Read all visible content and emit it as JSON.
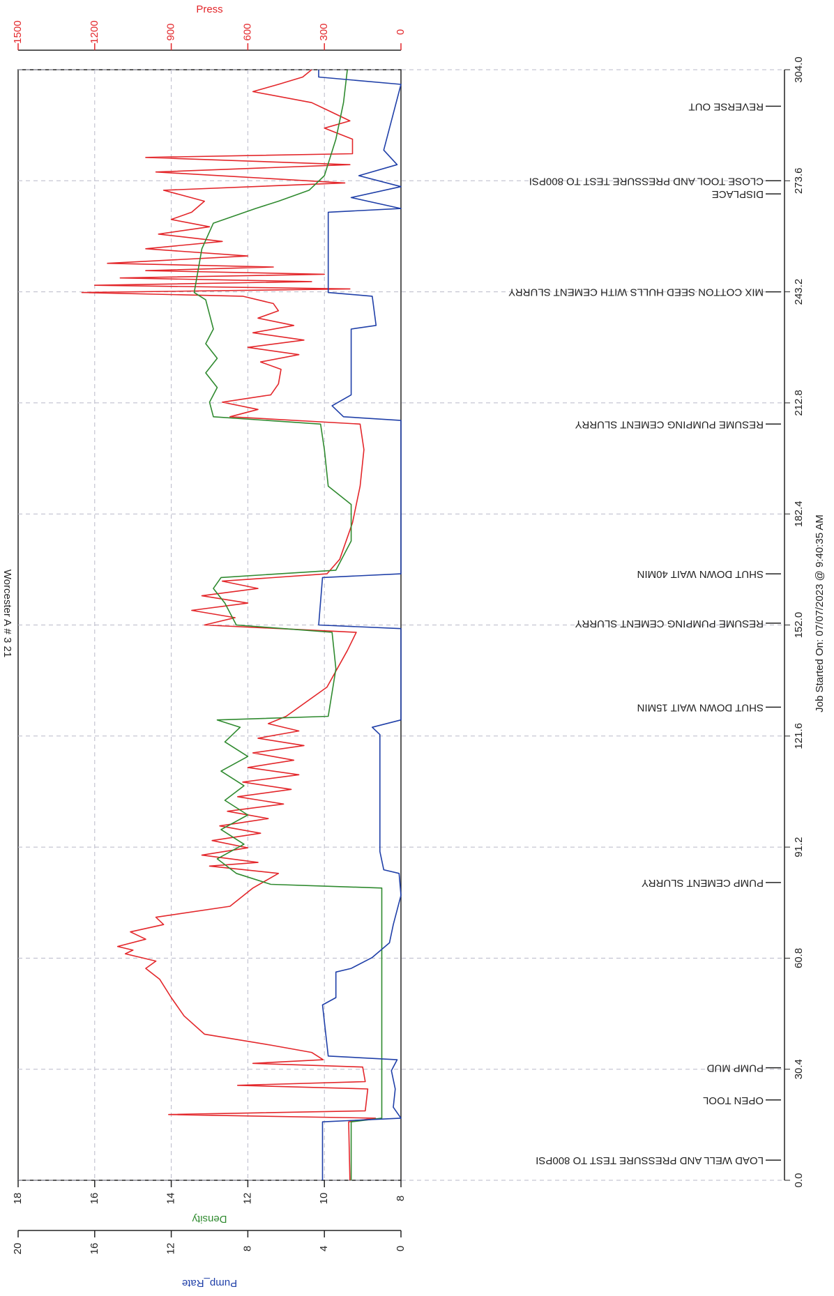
{
  "chart_data": {
    "type": "line",
    "title": "Worcester A # 3 21",
    "footer": "Job Started On: 07/07/2023 @ 9:40:35 AM",
    "xlim": [
      0,
      304
    ],
    "xticks": [
      {
        "value": 0,
        "label": "0.0"
      },
      30.4,
      60.8,
      91.2,
      121.6,
      {
        "value": 152,
        "label": "152.0"
      },
      182.4,
      212.8,
      243.2,
      273.6,
      {
        "value": 304,
        "label": "304.0"
      }
    ],
    "grid": true,
    "series": [
      {
        "name": "Press",
        "color": "#e3262a",
        "ylim": [
          0,
          1500
        ],
        "yticks": [
          0,
          300,
          600,
          900,
          1200,
          1500
        ],
        "x": [
          0,
          16,
          17,
          18,
          19,
          25,
          26,
          27,
          31,
          32,
          33,
          35,
          37,
          40,
          45,
          50,
          55,
          58,
          60,
          62,
          63,
          64,
          66,
          68,
          70,
          72,
          75,
          80,
          84,
          86,
          87,
          89,
          91,
          93,
          95,
          97,
          99,
          101,
          103,
          105,
          107,
          109,
          111,
          113,
          115,
          117,
          119,
          121,
          123,
          125,
          127,
          135,
          145,
          150,
          152,
          154,
          156,
          158,
          160,
          162,
          164,
          166,
          170,
          180,
          190,
          200,
          207,
          209,
          211,
          213,
          215,
          218,
          222,
          224,
          226,
          228,
          230,
          232,
          234,
          236,
          238,
          240,
          242,
          243,
          244,
          245,
          246,
          247,
          248,
          249,
          250,
          251,
          253,
          255,
          257,
          259,
          261,
          263,
          265,
          268,
          271,
          273,
          276,
          278,
          280,
          281,
          285,
          288,
          290,
          293,
          295,
          298,
          300,
          302,
          304
        ],
        "values": [
          200,
          205,
          100,
          910,
          140,
          130,
          640,
          140,
          150,
          580,
          305,
          350,
          510,
          770,
          850,
          900,
          945,
          1000,
          960,
          1080,
          1050,
          1110,
          1000,
          1060,
          930,
          960,
          670,
          580,
          480,
          750,
          560,
          780,
          600,
          740,
          550,
          710,
          520,
          680,
          460,
          640,
          430,
          620,
          400,
          600,
          420,
          580,
          380,
          560,
          400,
          520,
          450,
          290,
          210,
          175,
          770,
          650,
          820,
          600,
          780,
          560,
          700,
          290,
          240,
          190,
          160,
          145,
          160,
          670,
          560,
          700,
          510,
          480,
          470,
          550,
          400,
          600,
          380,
          580,
          420,
          560,
          480,
          500,
          620,
          1250,
          200,
          1200,
          350,
          1100,
          300,
          1000,
          500,
          1150,
          600,
          1000,
          700,
          950,
          750,
          900,
          820,
          770,
          930,
          220,
          960,
          200,
          1000,
          190,
          190,
          300,
          200,
          290,
          350,
          580,
          480,
          385,
          350
        ]
      },
      {
        "name": "Density",
        "color": "#2f8a2f",
        "ylim": [
          8,
          18
        ],
        "yticks": [
          8,
          10,
          12,
          14,
          16,
          18
        ],
        "x": [
          0,
          16,
          17,
          80,
          81,
          84,
          88,
          92,
          96,
          100,
          104,
          108,
          112,
          116,
          120,
          124,
          126,
          127,
          140,
          150,
          152,
          158,
          162,
          165,
          167,
          175,
          185,
          190,
          200,
          207,
          209,
          213,
          217,
          221,
          225,
          229,
          233,
          237,
          241,
          243,
          255,
          262,
          266,
          268,
          271,
          275,
          285,
          295,
          304
        ],
        "values": [
          9.3,
          9.3,
          8.5,
          8.5,
          11.4,
          12.3,
          12.8,
          12.1,
          12.7,
          12.0,
          12.6,
          12.1,
          12.7,
          12.0,
          12.6,
          12.2,
          12.8,
          9.9,
          9.7,
          9.8,
          12.3,
          12.6,
          12.9,
          12.7,
          9.7,
          9.3,
          9.3,
          9.9,
          10.0,
          10.1,
          12.9,
          13.0,
          12.8,
          13.1,
          12.8,
          13.1,
          12.9,
          13.0,
          13.1,
          13.4,
          13.2,
          12.9,
          11.8,
          11.2,
          10.4,
          10.0,
          9.7,
          9.5,
          9.4
        ]
      },
      {
        "name": "Pump_Rate",
        "color": "#1f3fa8",
        "ylim": [
          0,
          20
        ],
        "yticks": [
          0,
          4,
          8,
          12,
          16,
          20
        ],
        "x": [
          0,
          16,
          17,
          20,
          25,
          30,
          33,
          34,
          48,
          50,
          57,
          58,
          61,
          65,
          70,
          78,
          84,
          85,
          90,
          122,
          124,
          126,
          151,
          152,
          165,
          166,
          208,
          209,
          212,
          215,
          233,
          234,
          242,
          243,
          265,
          266,
          269,
          272,
          275,
          278,
          282,
          300,
          302,
          304
        ],
        "values": [
          4.1,
          4.1,
          0,
          0.4,
          0.3,
          0.5,
          0.2,
          3.8,
          4.1,
          3.4,
          3.4,
          2.6,
          1.5,
          0.6,
          0.4,
          0,
          0.1,
          0.9,
          1.1,
          1.1,
          1.5,
          0,
          0,
          4.3,
          4.1,
          0,
          0,
          3.0,
          3.6,
          2.6,
          2.6,
          1.3,
          1.5,
          3.8,
          3.8,
          0,
          2.6,
          0,
          2.2,
          0.2,
          0.9,
          0,
          4.3,
          4.3
        ]
      }
    ],
    "annotations": [
      {
        "text": "LOAD WELL AND PRESSURE TEST TO 800PSI",
        "x": 5.5
      },
      {
        "text": "OPEN TOOL",
        "x": 22
      },
      {
        "text": "PUMP MUD",
        "x": 30.8
      },
      {
        "text": "PUMP CEMENT SLURRY",
        "x": 81.5
      },
      {
        "text": "SHUT DOWN WAIT 15MIN",
        "x": 129.5
      },
      {
        "text": "RESUME PUMPING CEMENT SLURRY",
        "x": 152.5
      },
      {
        "text": "SHUT DOWN WAIT 40MIN",
        "x": 166
      },
      {
        "text": "RESUME PUMPING CEMENT SLURRY",
        "x": 207
      },
      {
        "text": "MIX COTTON SEED HULLS WITH CEMENT SLURRY",
        "x": 243.2
      },
      {
        "text": "DISPLACE",
        "x": 270
      },
      {
        "text": "CLOSE TOOL AND PRESSURE TEST TO 800PSI",
        "x": 273.6
      },
      {
        "text": "REVERSE OUT",
        "x": 294
      }
    ]
  }
}
